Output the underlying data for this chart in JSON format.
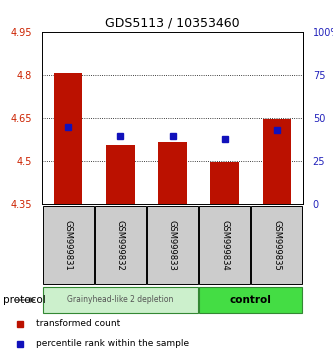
{
  "title": "GDS5113 / 10353460",
  "samples": [
    "GSM999831",
    "GSM999832",
    "GSM999833",
    "GSM999834",
    "GSM999835"
  ],
  "bar_bottom": 4.35,
  "bar_tops": [
    4.807,
    4.557,
    4.565,
    4.497,
    4.645
  ],
  "blue_markers": [
    4.617,
    4.587,
    4.587,
    4.577,
    4.607
  ],
  "ylim_left": [
    4.35,
    4.95
  ],
  "ylim_right": [
    0,
    100
  ],
  "yticks_left": [
    4.35,
    4.5,
    4.65,
    4.8,
    4.95
  ],
  "yticks_right": [
    0,
    25,
    50,
    75,
    100
  ],
  "ytick_labels_left": [
    "4.35",
    "4.5",
    "4.65",
    "4.8",
    "4.95"
  ],
  "ytick_labels_right": [
    "0",
    "25",
    "50",
    "75",
    "100%"
  ],
  "bar_color": "#bb1100",
  "blue_color": "#1111bb",
  "group1_label": "Grainyhead-like 2 depletion",
  "group2_label": "control",
  "group1_color": "#ccf0cc",
  "group2_color": "#44dd44",
  "group_edge_color": "#338833",
  "protocol_label": "protocol",
  "legend_red": "transformed count",
  "legend_blue": "percentile rank within the sample",
  "left_yaxis_color": "#cc2200",
  "right_yaxis_color": "#2222bb",
  "hlines": [
    4.5,
    4.65,
    4.8
  ],
  "bar_width": 0.55,
  "label_bg": "#cccccc",
  "fig_w": 3.33,
  "fig_h": 3.54,
  "dpi": 100
}
